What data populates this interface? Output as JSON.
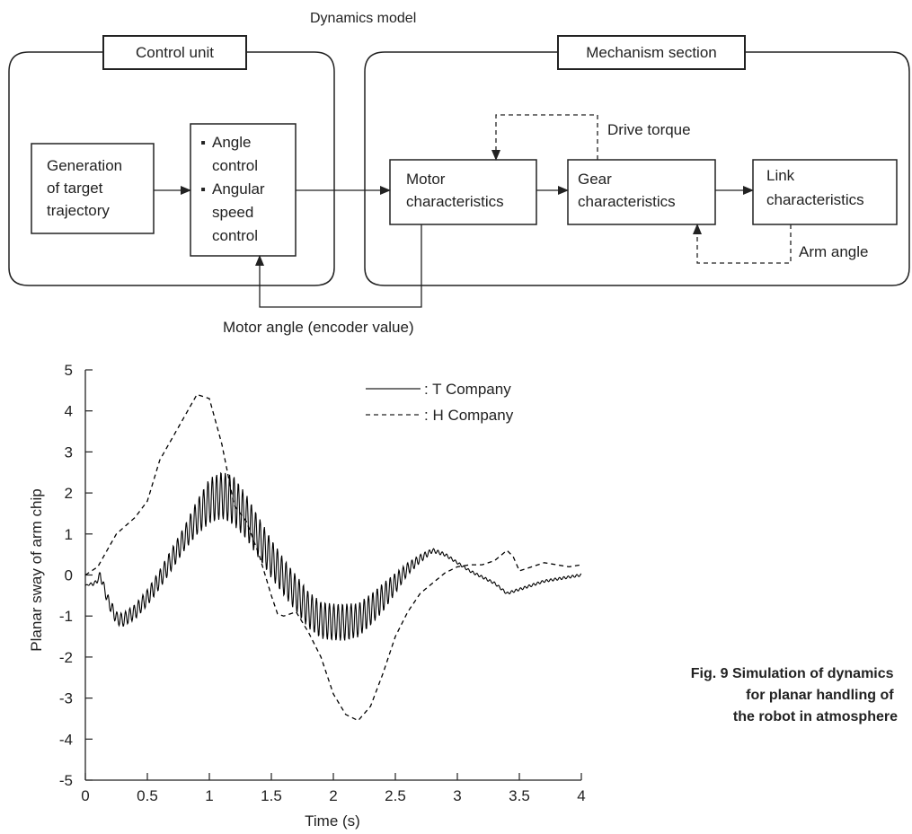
{
  "diagram": {
    "title": "Dynamics model",
    "control_unit": {
      "label": "Control unit",
      "target_block": [
        "Generation",
        "of target",
        "trajectory"
      ],
      "controller_block": {
        "items": [
          {
            "bullet": "▪",
            "lines": [
              "Angle",
              "control"
            ]
          },
          {
            "bullet": "▪",
            "lines": [
              "Angular",
              "speed",
              "control"
            ]
          }
        ]
      }
    },
    "mechanism_section": {
      "label": "Mechanism section",
      "motor_block": [
        "Motor",
        "characteristics"
      ],
      "gear_block": [
        "Gear",
        "characteristics"
      ],
      "link_block": [
        "Link",
        "characteristics"
      ]
    },
    "signals": {
      "drive_torque": "Drive torque",
      "arm_angle": "Arm angle",
      "motor_angle": "Motor angle (encoder value)"
    }
  },
  "chart_data": {
    "type": "line",
    "xlabel": "Time (s)",
    "ylabel": "Planar sway of arm chip",
    "xlim": [
      0,
      4
    ],
    "ylim": [
      -5,
      5
    ],
    "xticks": [
      "0",
      "0.5",
      "1",
      "1.5",
      "2",
      "2.5",
      "3",
      "3.5",
      "4"
    ],
    "yticks": [
      "5",
      "4",
      "3",
      "2",
      "1",
      "0",
      "-1",
      "-2",
      "-3",
      "-4",
      "-5"
    ],
    "legend_position": "top-right",
    "series": [
      {
        "name": ": T Company",
        "style": "solid",
        "color": "#000000",
        "oscillation": "high-frequency, about 0.035 s period, largest between 0.8 s and 2.4 s",
        "envelope_center": {
          "x": [
            0,
            0.08,
            0.12,
            0.18,
            0.25,
            0.3,
            0.4,
            0.5,
            0.6,
            0.7,
            0.8,
            0.9,
            1.0,
            1.1,
            1.2,
            1.3,
            1.4,
            1.5,
            1.6,
            1.7,
            1.8,
            1.9,
            2.0,
            2.1,
            2.2,
            2.3,
            2.4,
            2.5,
            2.6,
            2.7,
            2.8,
            2.9,
            3.0,
            3.1,
            3.2,
            3.3,
            3.4,
            3.5,
            3.6,
            3.7,
            3.8,
            3.9,
            4.0
          ],
          "y": [
            -0.25,
            -0.2,
            0.0,
            -0.6,
            -1.05,
            -1.1,
            -0.9,
            -0.55,
            -0.1,
            0.4,
            0.9,
            1.4,
            1.8,
            1.95,
            1.8,
            1.4,
            0.9,
            0.4,
            -0.05,
            -0.45,
            -0.85,
            -1.1,
            -1.15,
            -1.15,
            -1.1,
            -0.85,
            -0.55,
            -0.2,
            0.15,
            0.4,
            0.6,
            0.5,
            0.3,
            0.1,
            -0.05,
            -0.2,
            -0.45,
            -0.35,
            -0.25,
            -0.15,
            -0.1,
            -0.05,
            0.0
          ]
        },
        "envelope_amplitude": {
          "x": [
            0,
            0.2,
            0.5,
            0.8,
            1.0,
            1.2,
            1.4,
            1.6,
            1.9,
            2.1,
            2.4,
            2.6,
            2.8,
            3.0,
            3.4,
            4.0
          ],
          "y": [
            0,
            0.15,
            0.2,
            0.3,
            0.55,
            0.6,
            0.5,
            0.45,
            0.45,
            0.45,
            0.35,
            0.15,
            0.05,
            0.03,
            0.03,
            0.03
          ]
        }
      },
      {
        "name": ": H Company",
        "style": "dashed",
        "color": "#000000",
        "x": [
          0,
          0.1,
          0.25,
          0.4,
          0.5,
          0.6,
          0.75,
          0.9,
          1.0,
          1.1,
          1.2,
          1.3,
          1.4,
          1.5,
          1.55,
          1.6,
          1.7,
          1.8,
          1.9,
          2.0,
          2.1,
          2.2,
          2.3,
          2.4,
          2.5,
          2.6,
          2.7,
          2.8,
          2.9,
          3.0,
          3.1,
          3.2,
          3.3,
          3.4,
          3.45,
          3.5,
          3.6,
          3.7,
          3.8,
          3.9,
          4.0
        ],
        "y": [
          0.0,
          0.2,
          1.0,
          1.4,
          1.8,
          2.8,
          3.6,
          4.4,
          4.3,
          3.2,
          1.7,
          1.3,
          0.5,
          -0.5,
          -0.95,
          -1.0,
          -0.9,
          -1.4,
          -2.0,
          -2.9,
          -3.4,
          -3.55,
          -3.2,
          -2.4,
          -1.5,
          -0.9,
          -0.45,
          -0.2,
          0.05,
          0.2,
          0.25,
          0.25,
          0.35,
          0.6,
          0.45,
          0.1,
          0.2,
          0.3,
          0.25,
          0.2,
          0.25
        ]
      }
    ]
  },
  "caption": [
    "Fig. 9  Simulation of dynamics",
    "for planar handling of",
    "the robot in atmosphere"
  ]
}
